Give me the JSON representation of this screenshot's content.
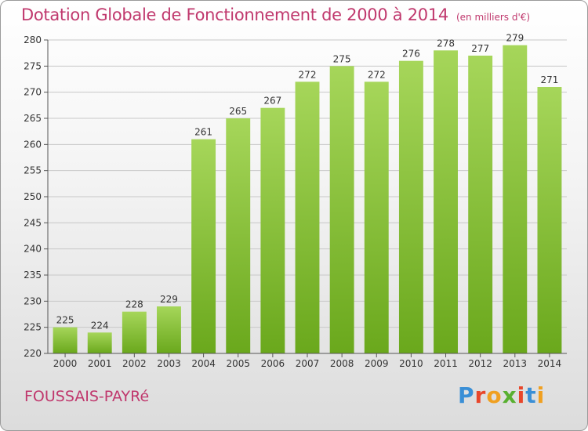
{
  "title": "Dotation Globale de Fonctionnement de 2000 à 2014",
  "unit": "(en milliers d'€)",
  "commune": "FOUSSAIS-PAYRé",
  "logo": {
    "text": "Proxiti",
    "letter_colors": [
      "#3a8fd6",
      "#e8462a",
      "#f0a020",
      "#59b031",
      "#e8462a",
      "#3a8fd6",
      "#f0a020"
    ]
  },
  "colors": {
    "title": "#c0386d",
    "bar_light": "#a6d65a",
    "bar_dark": "#6aa81c",
    "grid": "#c8c8c8"
  },
  "chart_data": {
    "type": "bar",
    "title": "Dotation Globale de Fonctionnement de 2000 à 2014",
    "xlabel": "",
    "ylabel": "",
    "categories": [
      "2000",
      "2001",
      "2002",
      "2003",
      "2004",
      "2005",
      "2006",
      "2007",
      "2008",
      "2009",
      "2010",
      "2011",
      "2012",
      "2013",
      "2014"
    ],
    "values": [
      225,
      224,
      228,
      229,
      261,
      265,
      267,
      272,
      275,
      272,
      276,
      278,
      277,
      279,
      271
    ],
    "ylim": [
      220,
      280
    ],
    "yticks": [
      220,
      225,
      230,
      235,
      240,
      245,
      250,
      255,
      260,
      265,
      270,
      275,
      280
    ],
    "grid": true,
    "data_labels": true
  }
}
